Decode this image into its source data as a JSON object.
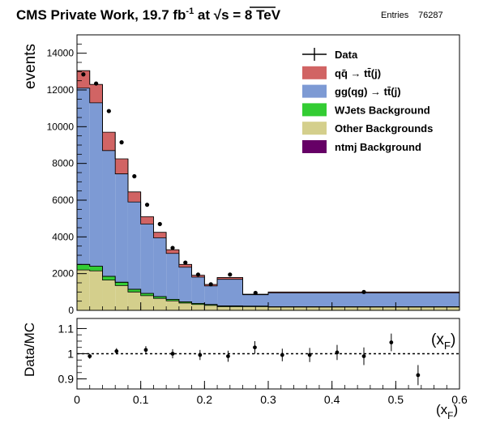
{
  "header": {
    "title_main": "CMS Private Work, 19.7 fb",
    "title_sup": "-1",
    "title_at": " at ",
    "title_sqrt": "√s",
    "title_energy": " = 8 TeV",
    "entries_label": "Entries",
    "entries_value": "76287"
  },
  "chart_data": [
    {
      "type": "bar",
      "stacked": true,
      "ylabel": "events",
      "xlim": [
        0,
        0.6
      ],
      "ylim": [
        0,
        15000
      ],
      "yticks": [
        "0",
        "2000",
        "4000",
        "6000",
        "8000",
        "10000",
        "12000",
        "14000"
      ],
      "bin_edges": [
        0,
        0.02,
        0.04,
        0.06,
        0.08,
        0.1,
        0.12,
        0.14,
        0.16,
        0.18,
        0.2,
        0.22,
        0.26,
        0.3,
        0.6
      ],
      "legend": {
        "placement": "top-right",
        "entries": [
          {
            "label": "Data",
            "kind": "marker"
          },
          {
            "label": "qq̄ → tt̄(j)",
            "kind": "fill",
            "color": "#d16464"
          },
          {
            "label": "gg(qg) → tt̄(j)",
            "kind": "fill",
            "color": "#7d9ad4"
          },
          {
            "label": "WJets Background",
            "kind": "fill",
            "color": "#33cc33"
          },
          {
            "label": "Other Backgrounds",
            "kind": "fill",
            "color": "#d4cf8c"
          },
          {
            "label": "ntmj Background",
            "kind": "fill",
            "color": "#660066"
          }
        ]
      },
      "series": [
        {
          "name": "Other Backgrounds",
          "color": "#d4cf8c",
          "values": [
            2200,
            2150,
            1650,
            1350,
            1000,
            800,
            650,
            520,
            400,
            320,
            270,
            200,
            200,
            180
          ]
        },
        {
          "name": "WJets Background",
          "color": "#33cc33",
          "values": [
            300,
            250,
            200,
            180,
            150,
            120,
            100,
            80,
            70,
            60,
            50,
            40,
            30,
            20
          ]
        },
        {
          "name": "ntmj Background",
          "color": "#660066",
          "values": [
            0,
            0,
            0,
            0,
            0,
            0,
            0,
            0,
            0,
            0,
            0,
            0,
            0,
            0
          ]
        },
        {
          "name": "gg(qg) → tt̄(j)",
          "color": "#7d9ad4",
          "values": [
            9600,
            8900,
            6850,
            5900,
            4750,
            3780,
            3200,
            2500,
            1880,
            1430,
            1010,
            1450,
            620,
            750
          ]
        },
        {
          "name": "qq̄ → tt̄(j)",
          "color": "#d16464",
          "values": [
            950,
            1000,
            1000,
            820,
            550,
            400,
            300,
            200,
            150,
            100,
            80,
            100,
            30,
            50
          ]
        }
      ],
      "data_points": {
        "x": [
          0.01,
          0.03,
          0.05,
          0.07,
          0.09,
          0.11,
          0.13,
          0.15,
          0.17,
          0.19,
          0.21,
          0.24,
          0.28,
          0.45
        ],
        "y": [
          12850,
          12350,
          10850,
          9150,
          7300,
          5750,
          4700,
          3400,
          2600,
          1950,
          1420,
          1950,
          950,
          1000
        ]
      }
    },
    {
      "type": "scatter",
      "ylabel": "Data/MC",
      "xlabel": "(x_F)",
      "xlim": [
        0,
        0.6
      ],
      "ylim": [
        0.86,
        1.14
      ],
      "yticks": [
        "0.9",
        "1",
        "1.1"
      ],
      "xticks": [
        "0",
        "0.1",
        "0.2",
        "0.3",
        "0.4",
        "0.5",
        "0.6"
      ],
      "reference_line": 1,
      "side_label": "(x_F)",
      "points": {
        "x": [
          0.02,
          0.062,
          0.108,
          0.15,
          0.193,
          0.237,
          0.279,
          0.322,
          0.365,
          0.408,
          0.45,
          0.493,
          0.535
        ],
        "y": [
          0.99,
          1.01,
          1.015,
          1.0,
          0.995,
          0.99,
          1.025,
          0.995,
          0.995,
          1.005,
          0.99,
          1.045,
          0.915
        ],
        "err": [
          0.01,
          0.012,
          0.015,
          0.018,
          0.02,
          0.022,
          0.025,
          0.025,
          0.028,
          0.03,
          0.035,
          0.035,
          0.04
        ]
      }
    }
  ]
}
